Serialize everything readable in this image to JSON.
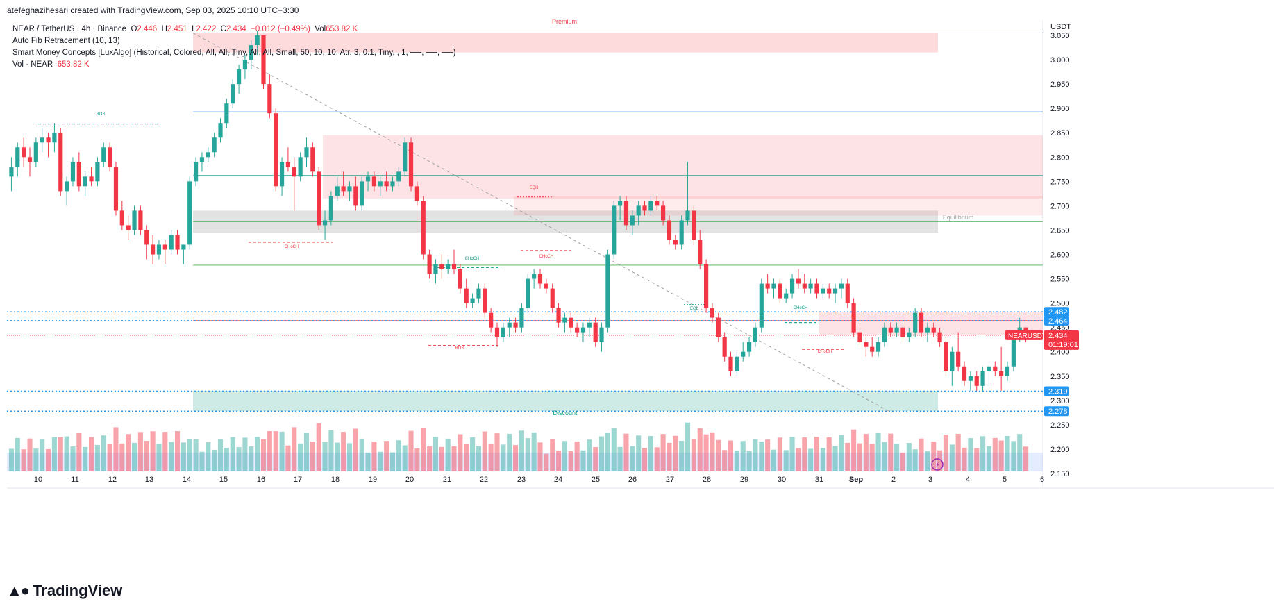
{
  "header": {
    "credit": "atefeghazihesari created with TradingView.com, Sep 03, 2025 10:10 UTC+3:30"
  },
  "legend": {
    "symbol": "NEAR / TetherUS · 4h · Binance",
    "o_label": "O",
    "o": "2.446",
    "h_label": "H",
    "h": "2.451",
    "l_label": "L",
    "l": "2.422",
    "c_label": "C",
    "c": "2.434",
    "change": "−0.012 (−0.49%)",
    "vol_label": "Vol",
    "vol": "653.82 K",
    "indicator1": "Auto Fib Retracement (10, 13)",
    "indicator2": "Smart Money Concepts [LuxAlgo] (Historical, Colored, All, All, Tiny, All, All, Small, 50, 10, 10, Atr, 3, 0.1, Tiny, , 1, ──, ──, ──)",
    "indicator3_label": "Vol · NEAR",
    "indicator3_value": "653.82 K"
  },
  "footer": {
    "logo_text": "TradingView"
  },
  "colors": {
    "up": "#26a69a",
    "down": "#f23645",
    "price_blue": "#2962ff",
    "label_blue": "#2196f3"
  },
  "chart_data": {
    "type": "candlestick",
    "currency": "USDT",
    "ylim": [
      2.12,
      3.08
    ],
    "y_ticks": [
      "3.050",
      "3.000",
      "2.950",
      "2.900",
      "2.850",
      "2.800",
      "2.750",
      "2.700",
      "2.650",
      "2.600",
      "2.550",
      "2.500",
      "2.450",
      "2.400",
      "2.350",
      "2.300",
      "2.250",
      "2.200",
      "2.150"
    ],
    "x_ticks": [
      "10",
      "11",
      "12",
      "13",
      "14",
      "15",
      "16",
      "17",
      "18",
      "19",
      "20",
      "21",
      "22",
      "23",
      "24",
      "25",
      "26",
      "27",
      "28",
      "29",
      "30",
      "31",
      "Sep",
      "2",
      "3",
      "4",
      "5",
      "6"
    ],
    "price_labels": [
      {
        "value": "2.482",
        "color": "#2196f3"
      },
      {
        "value": "2.464",
        "color": "#2196f3"
      },
      {
        "value": "2.319",
        "color": "#2196f3"
      },
      {
        "value": "2.278",
        "color": "#2196f3"
      }
    ],
    "last_price": {
      "symbol": "NEARUSDT",
      "value": "2.434",
      "timer": "01:19:01"
    },
    "annotations": [
      {
        "text": "Premium",
        "color": "#f23645"
      },
      {
        "text": "Equilibrium",
        "color": "#9e9e9e"
      },
      {
        "text": "Discount",
        "color": "#089981"
      },
      {
        "text": "BOS",
        "color": "#089981"
      },
      {
        "text": "CHoCH",
        "color": "#f23645"
      },
      {
        "text": "CHoCH",
        "color": "#089981"
      },
      {
        "text": "EQH",
        "color": "#f23645"
      },
      {
        "text": "CHoCH",
        "color": "#f23645"
      },
      {
        "text": "BOS",
        "color": "#f23645"
      },
      {
        "text": "EQL",
        "color": "#089981"
      },
      {
        "text": "CHoCH",
        "color": "#089981"
      },
      {
        "text": "CHoCH",
        "color": "#f23645"
      }
    ],
    "candles": [
      [
        2.76,
        2.8,
        2.73,
        2.78
      ],
      [
        2.78,
        2.83,
        2.76,
        2.82
      ],
      [
        2.82,
        2.84,
        2.78,
        2.8
      ],
      [
        2.8,
        2.82,
        2.76,
        2.79
      ],
      [
        2.79,
        2.84,
        2.78,
        2.83
      ],
      [
        2.83,
        2.86,
        2.81,
        2.84
      ],
      [
        2.84,
        2.85,
        2.8,
        2.83
      ],
      [
        2.83,
        2.87,
        2.81,
        2.85
      ],
      [
        2.85,
        2.86,
        2.72,
        2.73
      ],
      [
        2.73,
        2.76,
        2.7,
        2.75
      ],
      [
        2.75,
        2.8,
        2.74,
        2.79
      ],
      [
        2.79,
        2.81,
        2.73,
        2.74
      ],
      [
        2.74,
        2.77,
        2.72,
        2.76
      ],
      [
        2.76,
        2.78,
        2.74,
        2.75
      ],
      [
        2.75,
        2.8,
        2.74,
        2.79
      ],
      [
        2.79,
        2.83,
        2.78,
        2.82
      ],
      [
        2.82,
        2.83,
        2.77,
        2.78
      ],
      [
        2.78,
        2.79,
        2.68,
        2.69
      ],
      [
        2.69,
        2.71,
        2.65,
        2.66
      ],
      [
        2.66,
        2.68,
        2.63,
        2.65
      ],
      [
        2.65,
        2.7,
        2.64,
        2.69
      ],
      [
        2.69,
        2.7,
        2.64,
        2.65
      ],
      [
        2.65,
        2.66,
        2.59,
        2.62
      ],
      [
        2.62,
        2.64,
        2.58,
        2.6
      ],
      [
        2.6,
        2.63,
        2.59,
        2.62
      ],
      [
        2.62,
        2.63,
        2.58,
        2.61
      ],
      [
        2.61,
        2.65,
        2.6,
        2.64
      ],
      [
        2.64,
        2.65,
        2.6,
        2.61
      ],
      [
        2.61,
        2.62,
        2.58,
        2.62
      ],
      [
        2.62,
        2.76,
        2.61,
        2.75
      ],
      [
        2.75,
        2.8,
        2.74,
        2.79
      ],
      [
        2.79,
        2.81,
        2.77,
        2.8
      ],
      [
        2.8,
        2.82,
        2.79,
        2.81
      ],
      [
        2.81,
        2.85,
        2.8,
        2.84
      ],
      [
        2.84,
        2.88,
        2.83,
        2.87
      ],
      [
        2.87,
        2.92,
        2.86,
        2.91
      ],
      [
        2.91,
        2.96,
        2.9,
        2.95
      ],
      [
        2.95,
        2.99,
        2.93,
        2.98
      ],
      [
        2.98,
        3.01,
        2.96,
        3.0
      ],
      [
        3.0,
        3.04,
        2.98,
        3.03
      ],
      [
        3.03,
        3.06,
        3.01,
        3.05
      ],
      [
        3.05,
        3.05,
        2.94,
        2.95
      ],
      [
        2.95,
        2.97,
        2.88,
        2.89
      ],
      [
        2.89,
        2.9,
        2.73,
        2.74
      ],
      [
        2.74,
        2.8,
        2.72,
        2.79
      ],
      [
        2.79,
        2.82,
        2.77,
        2.78
      ],
      [
        2.78,
        2.8,
        2.69,
        2.76
      ],
      [
        2.76,
        2.81,
        2.75,
        2.8
      ],
      [
        2.8,
        2.84,
        2.78,
        2.82
      ],
      [
        2.82,
        2.83,
        2.76,
        2.77
      ],
      [
        2.77,
        2.78,
        2.65,
        2.66
      ],
      [
        2.66,
        2.69,
        2.63,
        2.67
      ],
      [
        2.67,
        2.73,
        2.66,
        2.72
      ],
      [
        2.72,
        2.76,
        2.71,
        2.74
      ],
      [
        2.74,
        2.77,
        2.72,
        2.73
      ],
      [
        2.73,
        2.75,
        2.71,
        2.74
      ],
      [
        2.74,
        2.76,
        2.69,
        2.7
      ],
      [
        2.7,
        2.76,
        2.69,
        2.75
      ],
      [
        2.75,
        2.77,
        2.73,
        2.76
      ],
      [
        2.76,
        2.77,
        2.73,
        2.74
      ],
      [
        2.74,
        2.76,
        2.72,
        2.75
      ],
      [
        2.75,
        2.77,
        2.73,
        2.74
      ],
      [
        2.74,
        2.76,
        2.73,
        2.75
      ],
      [
        2.75,
        2.78,
        2.74,
        2.77
      ],
      [
        2.77,
        2.84,
        2.76,
        2.83
      ],
      [
        2.83,
        2.84,
        2.73,
        2.74
      ],
      [
        2.74,
        2.75,
        2.7,
        2.71
      ],
      [
        2.71,
        2.72,
        2.59,
        2.6
      ],
      [
        2.6,
        2.61,
        2.55,
        2.56
      ],
      [
        2.56,
        2.59,
        2.54,
        2.58
      ],
      [
        2.58,
        2.6,
        2.55,
        2.57
      ],
      [
        2.57,
        2.59,
        2.56,
        2.58
      ],
      [
        2.58,
        2.61,
        2.56,
        2.57
      ],
      [
        2.57,
        2.58,
        2.52,
        2.53
      ],
      [
        2.53,
        2.55,
        2.49,
        2.5
      ],
      [
        2.5,
        2.52,
        2.49,
        2.51
      ],
      [
        2.51,
        2.54,
        2.5,
        2.53
      ],
      [
        2.53,
        2.54,
        2.47,
        2.48
      ],
      [
        2.48,
        2.49,
        2.44,
        2.45
      ],
      [
        2.45,
        2.46,
        2.41,
        2.43
      ],
      [
        2.43,
        2.46,
        2.42,
        2.45
      ],
      [
        2.45,
        2.47,
        2.43,
        2.46
      ],
      [
        2.46,
        2.47,
        2.44,
        2.45
      ],
      [
        2.45,
        2.5,
        2.44,
        2.49
      ],
      [
        2.49,
        2.56,
        2.48,
        2.55
      ],
      [
        2.55,
        2.57,
        2.53,
        2.56
      ],
      [
        2.56,
        2.57,
        2.53,
        2.54
      ],
      [
        2.54,
        2.55,
        2.52,
        2.53
      ],
      [
        2.53,
        2.54,
        2.48,
        2.49
      ],
      [
        2.49,
        2.5,
        2.45,
        2.46
      ],
      [
        2.46,
        2.48,
        2.44,
        2.47
      ],
      [
        2.47,
        2.48,
        2.44,
        2.45
      ],
      [
        2.45,
        2.46,
        2.43,
        2.44
      ],
      [
        2.44,
        2.46,
        2.42,
        2.45
      ],
      [
        2.45,
        2.47,
        2.43,
        2.46
      ],
      [
        2.46,
        2.47,
        2.41,
        2.42
      ],
      [
        2.42,
        2.46,
        2.4,
        2.45
      ],
      [
        2.45,
        2.61,
        2.44,
        2.6
      ],
      [
        2.6,
        2.71,
        2.59,
        2.7
      ],
      [
        2.7,
        2.72,
        2.67,
        2.71
      ],
      [
        2.71,
        2.72,
        2.65,
        2.66
      ],
      [
        2.66,
        2.69,
        2.64,
        2.68
      ],
      [
        2.68,
        2.71,
        2.66,
        2.7
      ],
      [
        2.7,
        2.71,
        2.68,
        2.69
      ],
      [
        2.69,
        2.72,
        2.68,
        2.71
      ],
      [
        2.71,
        2.72,
        2.69,
        2.7
      ],
      [
        2.7,
        2.71,
        2.66,
        2.67
      ],
      [
        2.67,
        2.68,
        2.62,
        2.63
      ],
      [
        2.63,
        2.64,
        2.61,
        2.62
      ],
      [
        2.62,
        2.68,
        2.61,
        2.67
      ],
      [
        2.67,
        2.79,
        2.66,
        2.69
      ],
      [
        2.69,
        2.7,
        2.62,
        2.63
      ],
      [
        2.63,
        2.65,
        2.57,
        2.58
      ],
      [
        2.58,
        2.59,
        2.48,
        2.49
      ],
      [
        2.49,
        2.5,
        2.46,
        2.47
      ],
      [
        2.47,
        2.48,
        2.42,
        2.43
      ],
      [
        2.43,
        2.44,
        2.38,
        2.39
      ],
      [
        2.39,
        2.4,
        2.35,
        2.36
      ],
      [
        2.36,
        2.4,
        2.35,
        2.39
      ],
      [
        2.39,
        2.42,
        2.38,
        2.4
      ],
      [
        2.4,
        2.43,
        2.39,
        2.42
      ],
      [
        2.42,
        2.46,
        2.41,
        2.45
      ],
      [
        2.45,
        2.55,
        2.44,
        2.54
      ],
      [
        2.54,
        2.56,
        2.52,
        2.53
      ],
      [
        2.53,
        2.55,
        2.51,
        2.54
      ],
      [
        2.54,
        2.55,
        2.5,
        2.51
      ],
      [
        2.51,
        2.53,
        2.5,
        2.52
      ],
      [
        2.52,
        2.56,
        2.51,
        2.55
      ],
      [
        2.55,
        2.57,
        2.53,
        2.54
      ],
      [
        2.54,
        2.56,
        2.52,
        2.53
      ],
      [
        2.53,
        2.55,
        2.52,
        2.54
      ],
      [
        2.54,
        2.55,
        2.51,
        2.52
      ],
      [
        2.52,
        2.54,
        2.51,
        2.53
      ],
      [
        2.53,
        2.54,
        2.51,
        2.52
      ],
      [
        2.52,
        2.54,
        2.5,
        2.53
      ],
      [
        2.53,
        2.55,
        2.51,
        2.54
      ],
      [
        2.54,
        2.55,
        2.49,
        2.5
      ],
      [
        2.5,
        2.51,
        2.43,
        2.44
      ],
      [
        2.44,
        2.46,
        2.41,
        2.42
      ],
      [
        2.42,
        2.43,
        2.39,
        2.41
      ],
      [
        2.41,
        2.43,
        2.39,
        2.4
      ],
      [
        2.4,
        2.43,
        2.39,
        2.42
      ],
      [
        2.42,
        2.46,
        2.41,
        2.45
      ],
      [
        2.45,
        2.46,
        2.43,
        2.44
      ],
      [
        2.44,
        2.46,
        2.43,
        2.45
      ],
      [
        2.45,
        2.46,
        2.42,
        2.43
      ],
      [
        2.43,
        2.45,
        2.42,
        2.44
      ],
      [
        2.44,
        2.49,
        2.43,
        2.48
      ],
      [
        2.48,
        2.49,
        2.43,
        2.44
      ],
      [
        2.44,
        2.46,
        2.42,
        2.45
      ],
      [
        2.45,
        2.46,
        2.43,
        2.44
      ],
      [
        2.44,
        2.45,
        2.41,
        2.42
      ],
      [
        2.42,
        2.43,
        2.35,
        2.36
      ],
      [
        2.36,
        2.41,
        2.33,
        2.4
      ],
      [
        2.4,
        2.44,
        2.36,
        2.37
      ],
      [
        2.37,
        2.38,
        2.33,
        2.34
      ],
      [
        2.34,
        2.36,
        2.32,
        2.35
      ],
      [
        2.35,
        2.36,
        2.32,
        2.33
      ],
      [
        2.33,
        2.37,
        2.32,
        2.36
      ],
      [
        2.36,
        2.38,
        2.33,
        2.37
      ],
      [
        2.37,
        2.38,
        2.35,
        2.36
      ],
      [
        2.36,
        2.41,
        2.32,
        2.35
      ],
      [
        2.35,
        2.38,
        2.34,
        2.37
      ],
      [
        2.37,
        2.44,
        2.36,
        2.43
      ],
      [
        2.43,
        2.47,
        2.42,
        2.45
      ],
      [
        2.45,
        2.45,
        2.42,
        2.434
      ]
    ],
    "volume_scale_max": 100
  }
}
